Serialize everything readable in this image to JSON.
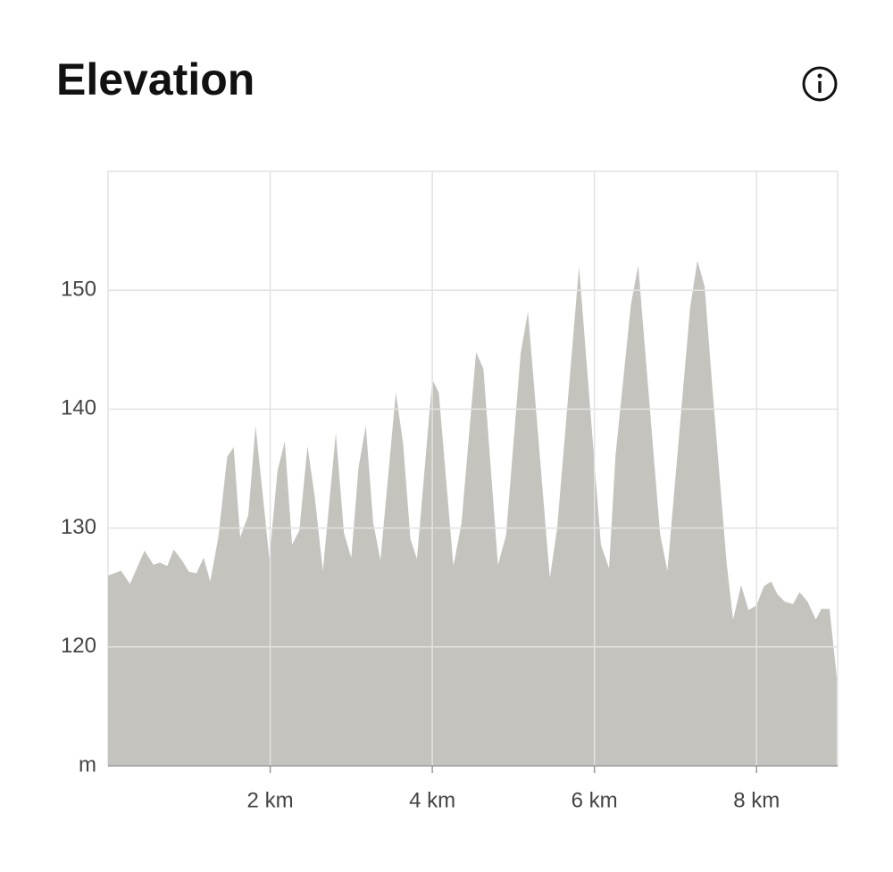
{
  "chart_data": {
    "type": "area",
    "title": "Elevation",
    "color": "#c4c3be",
    "grid": true,
    "xlim": [
      0,
      9
    ],
    "ylim": [
      110,
      160
    ],
    "xticks": [
      {
        "value": 2,
        "label": "2 km"
      },
      {
        "value": 4,
        "label": "4 km"
      },
      {
        "value": 6,
        "label": "6 km"
      },
      {
        "value": 8,
        "label": "8 km"
      }
    ],
    "yticks": [
      {
        "value": 110,
        "label": "m"
      },
      120,
      130,
      140,
      150
    ],
    "x": [
      0,
      0.16,
      0.27,
      0.45,
      0.56,
      0.64,
      0.73,
      0.81,
      0.91,
      1.0,
      1.09,
      1.18,
      1.26,
      1.36,
      1.47,
      1.55,
      1.63,
      1.73,
      1.82,
      1.99,
      2.09,
      2.18,
      2.27,
      2.36,
      2.46,
      2.55,
      2.65,
      2.81,
      2.91,
      3.0,
      3.09,
      3.18,
      3.27,
      3.36,
      3.55,
      3.64,
      3.73,
      3.81,
      4.0,
      4.08,
      4.26,
      4.36,
      4.54,
      4.63,
      4.81,
      4.91,
      5.09,
      5.18,
      5.45,
      5.54,
      5.81,
      6.08,
      6.18,
      6.26,
      6.45,
      6.54,
      6.81,
      6.9,
      7.18,
      7.27,
      7.36,
      7.45,
      7.63,
      7.71,
      7.81,
      7.9,
      8.0,
      8.09,
      8.18,
      8.26,
      8.35,
      8.45,
      8.53,
      8.63,
      8.73,
      8.8,
      8.9,
      8.99
    ],
    "values": [
      126,
      126.4,
      125.3,
      128.1,
      126.9,
      127.1,
      126.8,
      128.2,
      127.3,
      126.3,
      126.2,
      127.5,
      125.5,
      129.2,
      136,
      136.8,
      129.2,
      131.1,
      138.6,
      127.4,
      134.8,
      137.3,
      128.6,
      129.8,
      136.9,
      132.6,
      126.4,
      138,
      129.6,
      127.5,
      135.1,
      138.6,
      130.5,
      127.3,
      141.4,
      137.1,
      129.1,
      127.4,
      142.5,
      141.4,
      126.8,
      130.4,
      144.8,
      143.4,
      126.9,
      129.4,
      144.7,
      148.2,
      125.8,
      130,
      152,
      128.6,
      126.6,
      136.1,
      148.8,
      152.1,
      129.5,
      126.4,
      148.5,
      152.5,
      150.3,
      142.2,
      127.1,
      122.3,
      125.2,
      123.1,
      123.5,
      125.1,
      125.5,
      124.4,
      123.8,
      123.6,
      124.6,
      123.8,
      122.3,
      123.2,
      123.2,
      117.4
    ]
  }
}
